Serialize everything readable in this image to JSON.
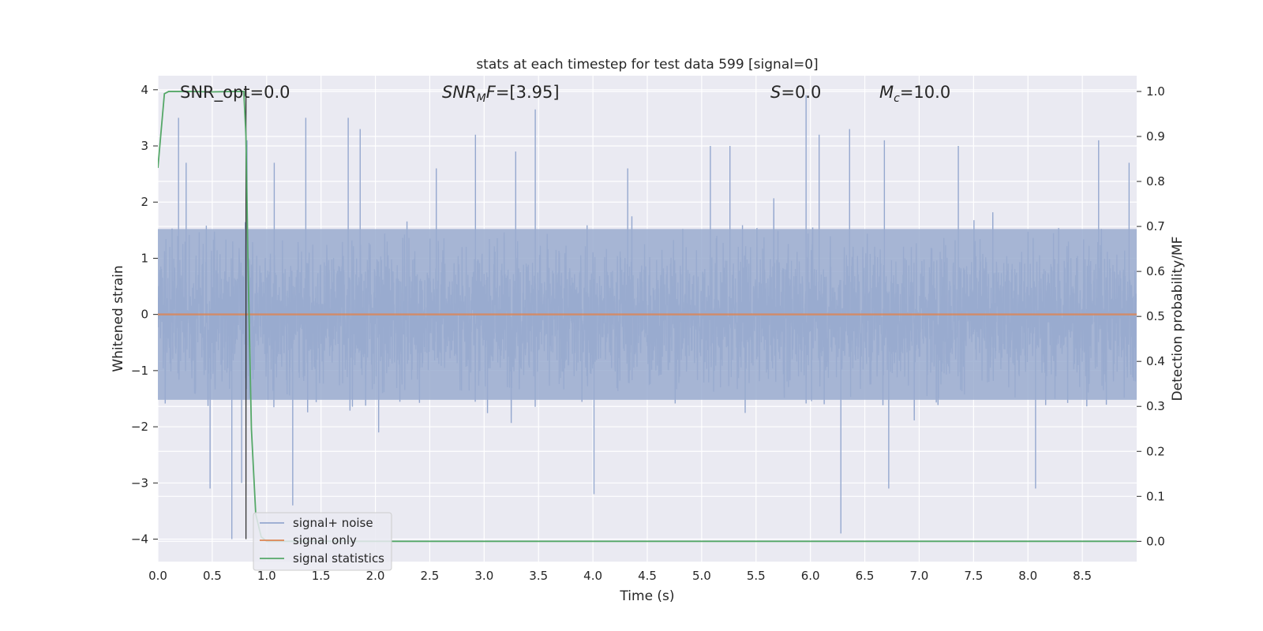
{
  "chart_data": {
    "type": "line",
    "title": "stats at each timestep for test data 599 [signal=0]",
    "xlabel": "Time (s)",
    "ylabel": "Whitened strain",
    "y2label": "Detection probability/MF",
    "xlim": [
      0.0,
      9.0
    ],
    "ylim": [
      -4.4,
      4.25
    ],
    "y2lim": [
      -0.045,
      1.035
    ],
    "xticks": [
      "0.0",
      "0.5",
      "1.0",
      "1.5",
      "2.0",
      "2.5",
      "3.0",
      "3.5",
      "4.0",
      "4.5",
      "5.0",
      "5.5",
      "6.0",
      "6.5",
      "7.0",
      "7.5",
      "8.0",
      "8.5"
    ],
    "yticks": [
      "4",
      "3",
      "2",
      "1",
      "0",
      "−1",
      "−2",
      "−3",
      "−4"
    ],
    "y2ticks": [
      "1.0",
      "0.9",
      "0.8",
      "0.7",
      "0.6",
      "0.5",
      "0.4",
      "0.3",
      "0.2",
      "0.1",
      "0.0"
    ],
    "grid": true,
    "legend_position": "lower-left",
    "annotations": {
      "snr_opt": "SNR_opt=0.0",
      "snr_mf": "=[3.95]",
      "s_value": "=0.0",
      "mc_value": "=10.0"
    },
    "series": [
      {
        "name": "signal+ noise",
        "color": "#95a8cf",
        "description_type": "noise",
        "amplitude_envelope": 1.6,
        "spikes": [
          [
            0.19,
            3.5
          ],
          [
            0.26,
            2.7
          ],
          [
            0.48,
            -3.1
          ],
          [
            0.68,
            -4.0
          ],
          [
            0.77,
            -3.0
          ],
          [
            0.82,
            3.1
          ],
          [
            1.07,
            2.7
          ],
          [
            1.24,
            -3.4
          ],
          [
            1.36,
            3.5
          ],
          [
            1.75,
            3.5
          ],
          [
            1.86,
            3.3
          ],
          [
            2.03,
            -2.1
          ],
          [
            2.56,
            2.6
          ],
          [
            2.92,
            3.2
          ],
          [
            3.29,
            2.9
          ],
          [
            3.47,
            3.65
          ],
          [
            4.01,
            -3.2
          ],
          [
            4.32,
            2.6
          ],
          [
            5.08,
            3.0
          ],
          [
            5.26,
            3.0
          ],
          [
            5.96,
            3.9
          ],
          [
            6.08,
            3.2
          ],
          [
            6.28,
            -3.9
          ],
          [
            6.36,
            3.3
          ],
          [
            6.68,
            3.1
          ],
          [
            6.72,
            -3.1
          ],
          [
            7.36,
            3.0
          ],
          [
            8.07,
            -3.1
          ],
          [
            8.65,
            3.1
          ],
          [
            8.93,
            2.7
          ]
        ]
      },
      {
        "name": "signal only",
        "color": "#dd8452",
        "values_constant": 0.0
      },
      {
        "name": "signal statistics",
        "color": "#55a868",
        "axis": "right",
        "x": [
          0.0,
          0.06,
          0.1,
          0.15,
          0.3,
          0.5,
          0.7,
          0.79,
          0.81,
          0.83,
          0.86,
          0.9,
          0.95,
          1.0,
          9.0
        ],
        "y": [
          0.83,
          0.995,
          1.0,
          1.0,
          1.0,
          0.999,
          1.0,
          1.0,
          0.9,
          0.6,
          0.25,
          0.06,
          0.01,
          0.0,
          0.0
        ]
      }
    ],
    "vline_x": 0.81
  }
}
